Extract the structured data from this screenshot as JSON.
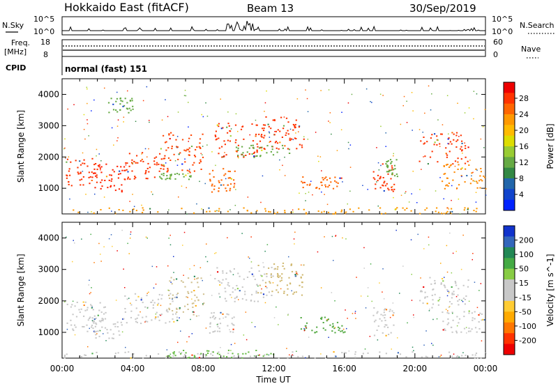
{
  "header": {
    "station": "Hokkaido East (fitACF)",
    "beam": "Beam 13",
    "date": "30/Sep/2019"
  },
  "status": {
    "nsky_label": "N.Sky",
    "nsky_ticks": [
      "10^5",
      "10^0"
    ],
    "nsearch_label": "N.Search",
    "freq_label": "Freq.",
    "freq_unit": "[MHz]",
    "freq_ticks": [
      "18",
      "8"
    ],
    "nave_label": "Nave",
    "nave_ticks": [
      "60",
      "0"
    ],
    "right_ticks": [
      "10^5",
      "10^0"
    ],
    "cpid_label": "CPID",
    "cpid_value": "normal (fast) 151"
  },
  "chart_data": [
    {
      "type": "heatmap",
      "name": "power",
      "ylabel": "Slant Range [km]",
      "xlabel": "Time UT",
      "x_ticks": [
        "00:00",
        "04:00",
        "08:00",
        "12:00",
        "16:00",
        "20:00",
        "00:00"
      ],
      "y_ticks": [
        1000,
        2000,
        3000,
        4000
      ],
      "colorbar": {
        "label": "Power [dB]",
        "ticks": [
          "28",
          "24",
          "20",
          "16",
          "12",
          "8",
          "4"
        ],
        "colors": [
          "#ee0000",
          "#ff3300",
          "#ff6600",
          "#ff9900",
          "#ffbb00",
          "#dddd00",
          "#99cc33",
          "#66aa44",
          "#338844",
          "#2266aa",
          "#1144cc",
          "#0022ff"
        ]
      },
      "patches": [
        {
          "t": [
            0.2,
            2.0
          ],
          "r": [
            1100,
            2000
          ],
          "c": "#ff3300"
        },
        {
          "t": [
            1.5,
            3.5
          ],
          "r": [
            900,
            1800
          ],
          "c": "#ff2200"
        },
        {
          "t": [
            3.5,
            6.0
          ],
          "r": [
            1300,
            2200
          ],
          "c": "#ff3300"
        },
        {
          "t": [
            5.5,
            8.0
          ],
          "r": [
            1500,
            2800
          ],
          "c": "#ff4400"
        },
        {
          "t": [
            5.0,
            7.5
          ],
          "r": [
            1300,
            1500
          ],
          "c": "#66aa44"
        },
        {
          "t": [
            8.6,
            11.5
          ],
          "r": [
            2000,
            3100
          ],
          "c": "#ff3300"
        },
        {
          "t": [
            11.0,
            13.7
          ],
          "r": [
            2200,
            3300
          ],
          "c": "#ff3300"
        },
        {
          "t": [
            9.8,
            13.0
          ],
          "r": [
            2000,
            2400
          ],
          "c": "#66aa44"
        },
        {
          "t": [
            8.3,
            9.8
          ],
          "r": [
            900,
            1700
          ],
          "c": "#ff6600"
        },
        {
          "t": [
            13.5,
            16.0
          ],
          "r": [
            1000,
            1400
          ],
          "c": "#ff6600"
        },
        {
          "t": [
            17.6,
            18.8
          ],
          "r": [
            900,
            1800
          ],
          "c": "#ff3300"
        },
        {
          "t": [
            18.3,
            19.0
          ],
          "r": [
            1400,
            2000
          ],
          "c": "#66aa44"
        },
        {
          "t": [
            20.2,
            23.0
          ],
          "r": [
            1800,
            2800
          ],
          "c": "#ff3300"
        },
        {
          "t": [
            21.5,
            24.0
          ],
          "r": [
            1000,
            1800
          ],
          "c": "#ff8800"
        },
        {
          "t": [
            2.5,
            4.0
          ],
          "r": [
            3400,
            3900
          ],
          "c": "#66aa44"
        },
        {
          "t": [
            0.0,
            24.0
          ],
          "r": [
            200,
            400
          ],
          "c": "#ff9900"
        }
      ]
    },
    {
      "type": "heatmap",
      "name": "velocity",
      "ylabel": "Slant Range [km]",
      "xlabel": "Time UT",
      "x_ticks": [
        "00:00",
        "04:00",
        "08:00",
        "12:00",
        "16:00",
        "20:00",
        "00:00"
      ],
      "y_ticks": [
        1000,
        2000,
        3000,
        4000
      ],
      "colorbar": {
        "label": "Velocity [m s^-1]",
        "ticks": [
          "200",
          "100",
          "50",
          "15",
          "-15",
          "-50",
          "-100",
          "-200"
        ],
        "colors": [
          "#1133cc",
          "#3366bb",
          "#228855",
          "#44aa44",
          "#88cc44",
          "#c8c8c8",
          "#c8c8c8",
          "#ffcc33",
          "#ffaa00",
          "#ff7700",
          "#ff3300",
          "#ee0000"
        ]
      },
      "patches": [
        {
          "t": [
            0.2,
            2.5
          ],
          "r": [
            1000,
            2000
          ],
          "c": "#c8c8c8"
        },
        {
          "t": [
            1.5,
            3.5
          ],
          "r": [
            800,
            1500
          ],
          "c": "#c8c8c8"
        },
        {
          "t": [
            3.5,
            6.5
          ],
          "r": [
            1300,
            2300
          ],
          "c": "#c8c8c8"
        },
        {
          "t": [
            6.0,
            8.0
          ],
          "r": [
            1500,
            2800
          ],
          "c": "#d0c090"
        },
        {
          "t": [
            8.6,
            12.0
          ],
          "r": [
            2000,
            3100
          ],
          "c": "#c8c8c8"
        },
        {
          "t": [
            11.0,
            13.7
          ],
          "r": [
            2200,
            3300
          ],
          "c": "#d0b870"
        },
        {
          "t": [
            8.3,
            9.8
          ],
          "r": [
            1000,
            1700
          ],
          "c": "#c8c8c8"
        },
        {
          "t": [
            13.5,
            16.0
          ],
          "r": [
            1000,
            1500
          ],
          "c": "#55aa44"
        },
        {
          "t": [
            17.6,
            18.8
          ],
          "r": [
            900,
            1800
          ],
          "c": "#c8c8c8"
        },
        {
          "t": [
            20.2,
            23.0
          ],
          "r": [
            1800,
            2800
          ],
          "c": "#c8c8c8"
        },
        {
          "t": [
            21.5,
            24.0
          ],
          "r": [
            1000,
            1700
          ],
          "c": "#c8c8c8"
        },
        {
          "t": [
            0.0,
            24.0
          ],
          "r": [
            200,
            400
          ],
          "c": "#c8c8c8"
        },
        {
          "t": [
            6.0,
            12.0
          ],
          "r": [
            200,
            450
          ],
          "c": "#66bb44"
        }
      ]
    }
  ]
}
